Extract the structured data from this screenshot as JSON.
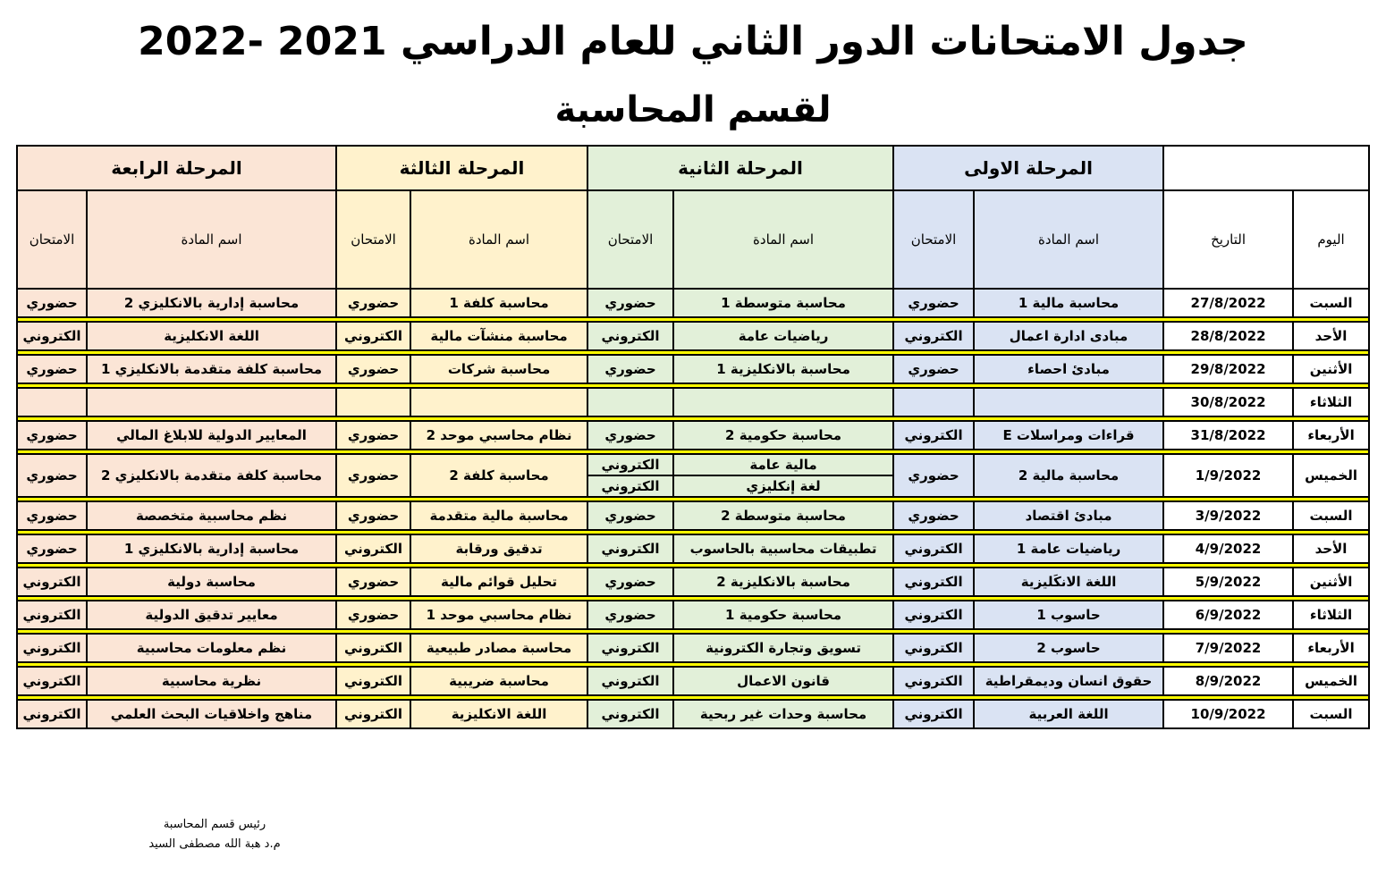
{
  "header": {
    "title": "جدول الامتحانات الدور الثاني للعام الدراسي 2021 -2022",
    "subtitle": "لقسم المحاسبة"
  },
  "table": {
    "stages": [
      "المرحلة الاولى",
      "المرحلة الثانية",
      "المرحلة الثالثة",
      "المرحلة الرابعة"
    ],
    "columns": {
      "day": "اليوم",
      "date": "التاريخ",
      "subject": "اسم المادة",
      "exam": "الامتحان"
    },
    "rows": [
      [
        "السبت",
        "27/8/2022",
        "محاسبة مالية 1",
        "حضوري",
        "محاسبة متوسطة 1",
        "حضوري",
        "محاسبة كلفة 1",
        "حضوري",
        "محاسبة إدارية بالانكليزي 2",
        "حضوري"
      ],
      [
        "الأحد",
        "28/8/2022",
        "مبادى ادارة اعمال",
        "الكتروني",
        "رياضيات عامة",
        "الكتروني",
        "محاسبة منشآت مالية",
        "الكتروني",
        "اللغة الانكليزية",
        "الكتروني"
      ],
      [
        "الأثنين",
        "29/8/2022",
        "مبادئ احصاء",
        "حضوري",
        "محاسبة بالانكليزية 1",
        "حضوري",
        "محاسبة شركات",
        "حضوري",
        "محاسبة كلفة متقدمة بالانكليزي 1",
        "حضوري"
      ],
      [
        "الثلاثاء",
        "30/8/2022"
      ],
      [
        "الأربعاء",
        "31/8/2022",
        "قراءات ومراسلات E",
        "الكتروني",
        "محاسبة حكومية 2",
        "حضوري",
        "نظام محاسبي موحد 2",
        "حضوري",
        "المعايير الدولية للابلاغ المالي",
        "حضوري"
      ],
      [
        "الخميس",
        "1/9/2022",
        "محاسبة مالية 2",
        "حضوري",
        [
          "مالية عامة",
          "لغة إنكليزي"
        ],
        [
          "الكتروني",
          "الكتروني"
        ],
        "محاسبة كلفة 2",
        "حضوري",
        "محاسبة كلفة متقدمة بالانكليزي 2",
        "حضوري"
      ],
      [
        "السبت",
        "3/9/2022",
        "مبادئ اقتصاد",
        "حضوري",
        "محاسبة متوسطة 2",
        "حضوري",
        "محاسبة مالية متقدمة",
        "حضوري",
        "نظم محاسبية متخصصة",
        "حضوري"
      ],
      [
        "الأحد",
        "4/9/2022",
        "رياضيات عامة 1",
        "الكتروني",
        "تطبيقات محاسبية بالحاسوب",
        "الكتروني",
        "تدقيق ورقابة",
        "الكتروني",
        "محاسبة إدارية بالانكليزي 1",
        "حضوري"
      ],
      [
        "الأثنين",
        "5/9/2022",
        "اللغة الانكَليزية",
        "الكتروني",
        "محاسبة بالانكليزية 2",
        "حضوري",
        "تحليل قوائم مالية",
        "حضوري",
        "محاسبة دولية",
        "الكتروني"
      ],
      [
        "الثلاثاء",
        "6/9/2022",
        "حاسوب 1",
        "الكتروني",
        "محاسبة حكومية 1",
        "حضوري",
        "نظام محاسبي موحد 1",
        "حضوري",
        "معايير تدقيق الدولية",
        "الكتروني"
      ],
      [
        "الأربعاء",
        "7/9/2022",
        "حاسوب 2",
        "الكتروني",
        "تسويق وتجارة الكترونية",
        "الكتروني",
        "محاسبة مصادر طبيعية",
        "الكتروني",
        "نظم معلومات محاسبية",
        "الكتروني"
      ],
      [
        "الخميس",
        "8/9/2022",
        "حقوق انسان وديمقراطية",
        "الكتروني",
        "قانون الاعمال",
        "الكتروني",
        "محاسبة ضريبية",
        "الكتروني",
        "نظرية محاسبية",
        "الكتروني"
      ],
      [
        "السبت",
        "10/9/2022",
        "اللغة العربية",
        "الكتروني",
        "محاسبة وحدات غير ربحية",
        "الكتروني",
        "اللغة الانكليزية",
        "الكتروني",
        "مناهج واخلاقيات البحث العلمي",
        "الكتروني"
      ]
    ]
  },
  "footer": {
    "role": "رئيس قسم المحاسبة",
    "name": "م.د هبة الله مصطفى السيد"
  }
}
